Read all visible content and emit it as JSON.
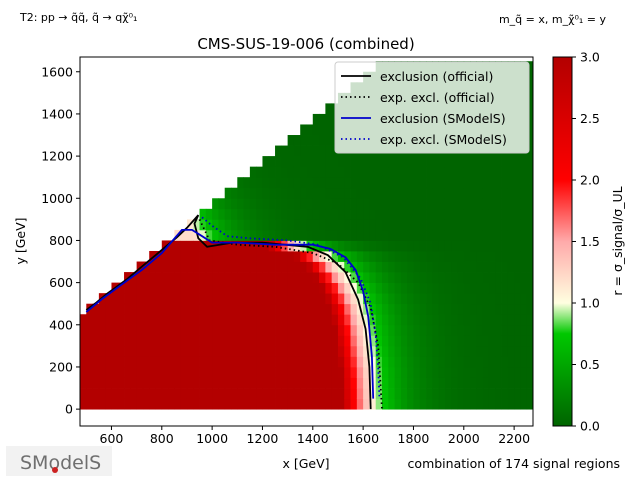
{
  "header": {
    "process": "T2: pp → q̃q̃, q̃ → qχ̃⁰₁",
    "masses": "m_q̃ = x, m_χ̃⁰₁ = y"
  },
  "footer": {
    "combination": "combination of 174 signal regions",
    "logo": "SModelS"
  },
  "chart_data": {
    "type": "heatmap",
    "title": "CMS-SUS-19-006 (combined)",
    "xlabel": "x [GeV]",
    "ylabel": "y [GeV]",
    "xlim": [
      475,
      2275
    ],
    "ylim": [
      -80,
      1670
    ],
    "xticks": [
      "600",
      "800",
      "1000",
      "1200",
      "1400",
      "1600",
      "1800",
      "2000",
      "2200"
    ],
    "yticks": [
      "0",
      "200",
      "400",
      "600",
      "800",
      "1000",
      "1200",
      "1400",
      "1600"
    ],
    "xtick_values": [
      600,
      800,
      1000,
      1200,
      1400,
      1600,
      1800,
      2000,
      2200
    ],
    "ytick_values": [
      0,
      200,
      400,
      600,
      800,
      1000,
      1200,
      1400,
      1600
    ],
    "colorbar": {
      "label": "r = σ_signal/σ_UL",
      "min": 0.0,
      "max": 3.0,
      "ticks": [
        "0.0",
        "0.5",
        "1.0",
        "1.5",
        "2.0",
        "2.5",
        "3.0"
      ],
      "tick_values": [
        0,
        0.5,
        1.0,
        1.5,
        2.0,
        2.5,
        3.0
      ],
      "colors": [
        "#006400",
        "#00ff00",
        "#ffffe0",
        "#ff0000",
        "#b30000"
      ]
    },
    "legend": {
      "placement": "top-right",
      "entries": [
        {
          "label": "exclusion (official)",
          "color": "#000000",
          "style": "solid"
        },
        {
          "label": "exp. excl. (official)",
          "color": "#000000",
          "style": "dotted"
        },
        {
          "label": "exclusion (SModelS)",
          "color": "#0000cc",
          "style": "solid"
        },
        {
          "label": "exp. excl. (SModelS)",
          "color": "#0000cc",
          "style": "dotted"
        }
      ]
    },
    "series": [
      {
        "name": "exclusion (official)",
        "color": "#000000",
        "style": "solid",
        "points": [
          [
            500,
            470
          ],
          [
            540,
            505
          ],
          [
            580,
            545
          ],
          [
            620,
            580
          ],
          [
            660,
            615
          ],
          [
            700,
            655
          ],
          [
            740,
            695
          ],
          [
            780,
            735
          ],
          [
            820,
            775
          ],
          [
            860,
            815
          ],
          [
            900,
            860
          ],
          [
            945,
            920
          ],
          [
            930,
            880
          ],
          [
            945,
            810
          ],
          [
            980,
            770
          ],
          [
            1080,
            790
          ],
          [
            1200,
            790
          ],
          [
            1380,
            770
          ],
          [
            1460,
            730
          ],
          [
            1530,
            650
          ],
          [
            1580,
            520
          ],
          [
            1610,
            380
          ],
          [
            1625,
            200
          ],
          [
            1630,
            0
          ]
        ]
      },
      {
        "name": "exp. excl. (official)",
        "color": "#000000",
        "style": "dotted",
        "points": [
          [
            950,
            900
          ],
          [
            990,
            800
          ],
          [
            1100,
            780
          ],
          [
            1250,
            770
          ],
          [
            1400,
            740
          ],
          [
            1500,
            690
          ],
          [
            1580,
            600
          ],
          [
            1630,
            480
          ],
          [
            1660,
            300
          ],
          [
            1670,
            100
          ],
          [
            1675,
            0
          ]
        ]
      },
      {
        "name": "exclusion (SModelS)",
        "color": "#0000cc",
        "style": "solid",
        "points": [
          [
            500,
            460
          ],
          [
            560,
            520
          ],
          [
            640,
            590
          ],
          [
            720,
            660
          ],
          [
            800,
            740
          ],
          [
            880,
            850
          ],
          [
            920,
            850
          ],
          [
            960,
            820
          ],
          [
            1000,
            790
          ],
          [
            1100,
            790
          ],
          [
            1250,
            780
          ],
          [
            1400,
            780
          ],
          [
            1470,
            760
          ],
          [
            1530,
            720
          ],
          [
            1570,
            660
          ],
          [
            1600,
            560
          ],
          [
            1620,
            440
          ],
          [
            1635,
            250
          ],
          [
            1640,
            50
          ]
        ]
      },
      {
        "name": "exp. excl. (SModelS)",
        "color": "#0000cc",
        "style": "dotted",
        "points": [
          [
            960,
            910
          ],
          [
            1000,
            870
          ],
          [
            1060,
            820
          ],
          [
            1150,
            810
          ],
          [
            1300,
            800
          ],
          [
            1420,
            780
          ],
          [
            1520,
            720
          ],
          [
            1590,
            620
          ],
          [
            1630,
            500
          ],
          [
            1650,
            350
          ],
          [
            1660,
            200
          ],
          [
            1665,
            50
          ]
        ]
      }
    ]
  }
}
